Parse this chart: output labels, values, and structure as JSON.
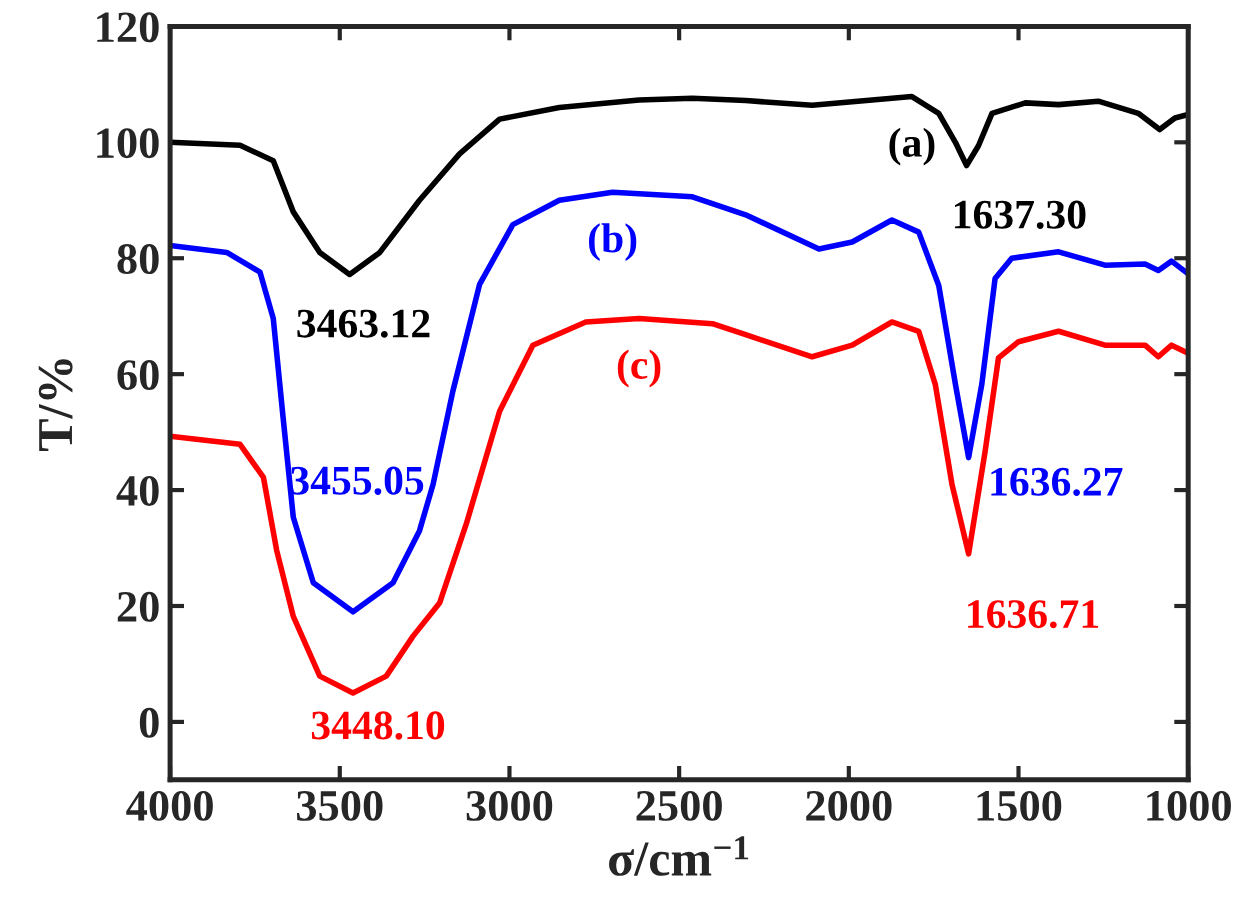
{
  "chart_data": {
    "type": "line",
    "xlabel": "σ/cm$^{−1}$",
    "ylabel": "T/%",
    "xlim": [
      4000,
      1000
    ],
    "xticks": [
      4000,
      3500,
      3000,
      2500,
      2000,
      1500,
      1000
    ],
    "ylim": [
      -10,
      120
    ],
    "yticks": [
      0,
      20,
      40,
      60,
      80,
      100,
      120
    ],
    "grid": false,
    "legend": false,
    "marker": "none",
    "line_style": "solid",
    "series": [
      {
        "name": "(a)",
        "color": "#000000",
        "x": [
          4000,
          3794,
          3696,
          3637,
          3559,
          3471,
          3382,
          3265,
          3147,
          3029,
          2853,
          2618,
          2461,
          2304,
          2108,
          1990,
          1814,
          1735,
          1686,
          1653,
          1618,
          1578,
          1480,
          1382,
          1265,
          1147,
          1084,
          1039,
          1000
        ],
        "values": [
          100,
          99.5,
          96.8,
          88,
          81,
          77.2,
          81,
          90,
          98,
          104,
          106,
          107.3,
          107.6,
          107.2,
          106.4,
          107,
          107.9,
          105,
          100,
          96,
          99.4,
          105,
          106.8,
          106.5,
          107.1,
          105,
          102.2,
          104.2,
          104.8
        ]
      },
      {
        "name": "(b)",
        "color": "#0000ff",
        "x": [
          4000,
          3833,
          3735,
          3696,
          3667,
          3637,
          3578,
          3461,
          3343,
          3265,
          3225,
          3167,
          3088,
          2990,
          2853,
          2696,
          2461,
          2304,
          2088,
          1990,
          1873,
          1794,
          1735,
          1686,
          1647,
          1608,
          1569,
          1520,
          1382,
          1245,
          1127,
          1088,
          1049,
          1000
        ],
        "values": [
          82.2,
          81,
          77.6,
          69.6,
          52.5,
          35.3,
          24,
          19,
          24,
          33,
          41,
          57,
          75.5,
          85.8,
          90,
          91.4,
          90.6,
          87.5,
          81.6,
          82.8,
          86.6,
          84.5,
          75.3,
          58.3,
          45.6,
          58.3,
          76.5,
          80,
          81.1,
          78.8,
          79,
          77.9,
          79.5,
          77.3
        ]
      },
      {
        "name": "(c)",
        "color": "#ff0000",
        "x": [
          4000,
          3794,
          3725,
          3686,
          3637,
          3559,
          3461,
          3363,
          3284,
          3206,
          3127,
          3029,
          2931,
          2775,
          2618,
          2402,
          2304,
          2108,
          1990,
          1873,
          1794,
          1745,
          1696,
          1647,
          1598,
          1559,
          1500,
          1382,
          1245,
          1127,
          1088,
          1049,
          1000
        ],
        "values": [
          49.3,
          47.9,
          42.2,
          29.6,
          18.2,
          7.9,
          5,
          7.9,
          14.8,
          20.5,
          34.2,
          53.6,
          65,
          69,
          69.6,
          68.7,
          66.8,
          63,
          65,
          69,
          67.4,
          58.2,
          41,
          29,
          46.8,
          62.8,
          65.6,
          67.4,
          65,
          65,
          63,
          65,
          63.6
        ]
      }
    ],
    "annotations": [
      {
        "text": "3463.12",
        "x": 3471,
        "y": 77.2
      },
      {
        "text": "3455.05",
        "x": 3225,
        "y": 41
      },
      {
        "text": "3448.10",
        "x": 3461,
        "y": 5
      },
      {
        "text": "1637.30",
        "x": 1653,
        "y": 96
      },
      {
        "text": "1636.27",
        "x": 1647,
        "y": 45.6
      },
      {
        "text": "1636.71",
        "x": 1647,
        "y": 29
      }
    ]
  }
}
